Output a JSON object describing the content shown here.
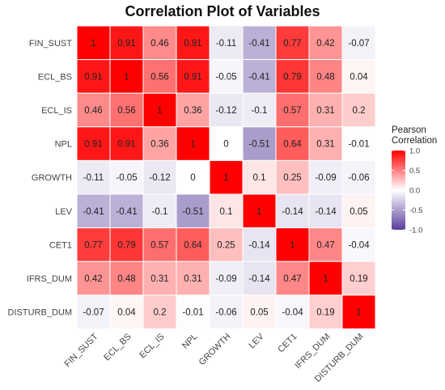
{
  "chart_data": {
    "type": "heatmap",
    "title": "Correlation Plot of Variables",
    "row_labels": [
      "FIN_SUST",
      "ECL_BS",
      "ECL_IS",
      "NPL",
      "GROWTH",
      "LEV",
      "CET1",
      "IFRS_DUM",
      "DISTURB_DUM"
    ],
    "col_labels": [
      "FIN_SUST",
      "ECL_BS",
      "ECL_IS",
      "NPL",
      "GROWTH",
      "LEV",
      "CET1",
      "IFRS_DUM",
      "DISTURB_DUM"
    ],
    "values": [
      [
        1,
        0.91,
        0.46,
        0.91,
        -0.11,
        -0.41,
        0.77,
        0.42,
        -0.07
      ],
      [
        0.91,
        1,
        0.56,
        0.91,
        -0.05,
        -0.41,
        0.79,
        0.48,
        0.04
      ],
      [
        0.46,
        0.56,
        1,
        0.36,
        -0.12,
        -0.1,
        0.57,
        0.31,
        0.2
      ],
      [
        0.91,
        0.91,
        0.36,
        1,
        0,
        -0.51,
        0.64,
        0.31,
        -0.01
      ],
      [
        -0.11,
        -0.05,
        -0.12,
        0,
        1,
        0.1,
        0.25,
        -0.09,
        -0.06
      ],
      [
        -0.41,
        -0.41,
        -0.1,
        -0.51,
        0.1,
        1,
        -0.14,
        -0.14,
        0.05
      ],
      [
        0.77,
        0.79,
        0.57,
        0.64,
        0.25,
        -0.14,
        1,
        0.47,
        -0.04
      ],
      [
        0.42,
        0.48,
        0.31,
        0.31,
        -0.09,
        -0.14,
        0.47,
        1,
        0.19
      ],
      [
        -0.07,
        0.04,
        0.2,
        -0.01,
        -0.06,
        0.05,
        -0.04,
        0.19,
        1
      ]
    ],
    "legend": {
      "title_lines": [
        "Pearson",
        "Correlation"
      ],
      "ticks": [
        "1.0",
        "0.5",
        "0.0",
        "-0.5",
        "-1.0"
      ],
      "tick_values": [
        1,
        0.5,
        0,
        -0.5,
        -1
      ],
      "range": [
        -1,
        1
      ],
      "placement": "right"
    },
    "colors": {
      "high": "#ff0000",
      "mid": "#ffffff",
      "low": "#5a3f9a",
      "grid": "#ffffff",
      "text": "#222222"
    }
  }
}
